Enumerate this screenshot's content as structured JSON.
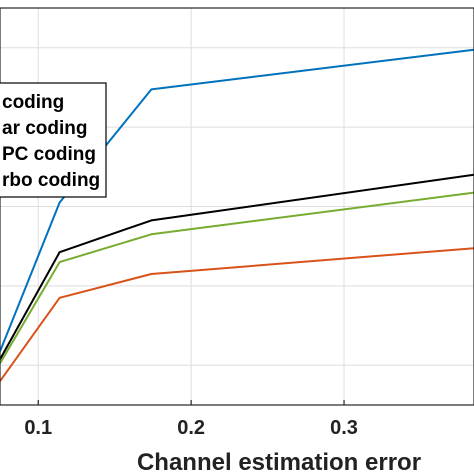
{
  "chart_data": {
    "type": "line",
    "title": "",
    "xlabel": "Channel estimation error",
    "ylabel": "",
    "xticks": [
      0.1,
      0.2,
      0.3
    ],
    "xtick_labels": [
      "0.1",
      "0.2",
      "0.3"
    ],
    "xlim": [
      0.075,
      0.385
    ],
    "ylim": [
      0,
      10
    ],
    "grid": true,
    "legend_position": "top-left",
    "series": [
      {
        "name": "coding",
        "color": "#0072BD",
        "x": [
          0.075,
          0.114,
          0.174,
          0.385
        ],
        "y": [
          1.35,
          5.1,
          7.95,
          8.95
        ]
      },
      {
        "name": "ar coding",
        "color": "#000000",
        "x": [
          0.075,
          0.114,
          0.174,
          0.385
        ],
        "y": [
          1.15,
          3.85,
          4.65,
          5.8
        ]
      },
      {
        "name": "PC coding",
        "color": "#77AC30",
        "x": [
          0.075,
          0.114,
          0.174,
          0.385
        ],
        "y": [
          1.05,
          3.6,
          4.3,
          5.35
        ]
      },
      {
        "name": "rbo coding",
        "color": "#D95319",
        "x": [
          0.075,
          0.114,
          0.174,
          0.385
        ],
        "y": [
          0.6,
          2.7,
          3.3,
          3.95
        ]
      }
    ]
  }
}
